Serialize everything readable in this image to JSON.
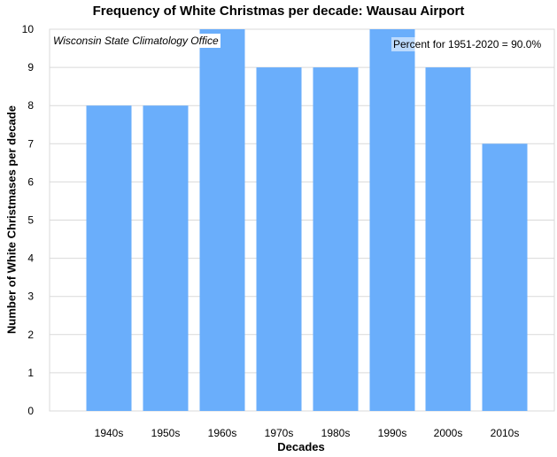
{
  "chart_data": {
    "type": "bar",
    "title": "Frequency of White Christmas per decade: Wausau Airport",
    "xlabel": "Decades",
    "ylabel": "Number  of White Christmases per decade",
    "categories": [
      "1940s",
      "1950s",
      "1960s",
      "1970s",
      "1980s",
      "1990s",
      "2000s",
      "2010s"
    ],
    "values": [
      8,
      8,
      10,
      9,
      9,
      10,
      9,
      7
    ],
    "ylim": [
      0,
      10
    ],
    "yticks": [
      0,
      1,
      2,
      3,
      4,
      5,
      6,
      7,
      8,
      9,
      10
    ],
    "grid": true,
    "bar_color": "#6aaefb",
    "annotations": {
      "source": "Wisconsin State Climatology Office",
      "percent": "Percent for 1951-2020 = 90.0%"
    }
  }
}
